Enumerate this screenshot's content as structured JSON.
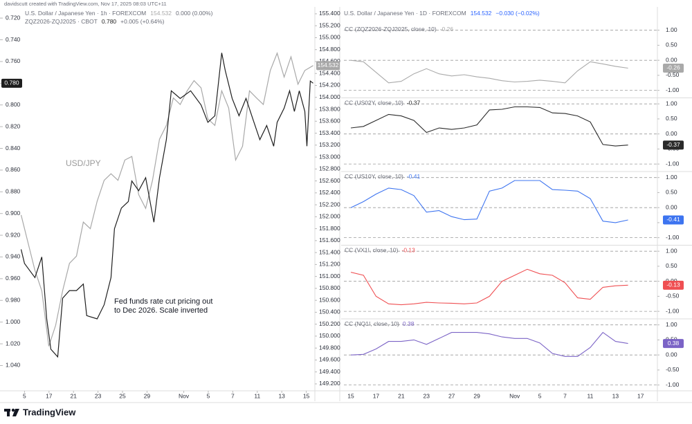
{
  "header": {
    "credit": "davidscutt created with TradingView.com, Nov 17, 2025 08:03 UTC+11"
  },
  "footer": {
    "brand": "TradingView"
  },
  "chart_data": [
    {
      "type": "line",
      "annotations": [
        "USD/JPY",
        "Fed funds rate cut pricing out",
        "to Dec 2026. Scale inverted"
      ],
      "xlim": [
        -2,
        23.7
      ],
      "xticks": [
        {
          "value": 0,
          "label": "5"
        },
        {
          "value": 2,
          "label": "17"
        },
        {
          "value": 4,
          "label": "21"
        },
        {
          "value": 6,
          "label": "23"
        },
        {
          "value": 8,
          "label": "25"
        },
        {
          "value": 10,
          "label": "29"
        },
        {
          "value": 13,
          "label": "Nov"
        },
        {
          "value": 15,
          "label": "5"
        },
        {
          "value": 17,
          "label": "7"
        },
        {
          "value": 19,
          "label": "11"
        },
        {
          "value": 21,
          "label": "13"
        },
        {
          "value": 23,
          "label": "15"
        }
      ],
      "ylim": [
        1.062,
        0.711
      ],
      "yticks": [
        {
          "value": 0.72,
          "label": "0.720"
        },
        {
          "value": 0.74,
          "label": "0.740"
        },
        {
          "value": 0.76,
          "label": "0.760"
        },
        {
          "value": 0.78,
          "label": "0.780"
        },
        {
          "value": 0.8,
          "label": "0.800"
        },
        {
          "value": 0.82,
          "label": "0.820"
        },
        {
          "value": 0.84,
          "label": "0.840"
        },
        {
          "value": 0.86,
          "label": "0.860"
        },
        {
          "value": 0.88,
          "label": "0.880"
        },
        {
          "value": 0.9,
          "label": "0.900"
        },
        {
          "value": 0.92,
          "label": "0.920"
        },
        {
          "value": 0.94,
          "label": "0.940"
        },
        {
          "value": 0.96,
          "label": "0.960"
        },
        {
          "value": 0.98,
          "label": "0.980"
        },
        {
          "value": 1.0,
          "label": "1.000"
        },
        {
          "value": 1.02,
          "label": "1.020"
        },
        {
          "value": 1.04,
          "label": "1.040"
        }
      ],
      "y2lim": [
        149.107,
        155.492
      ],
      "y2ticks": [
        {
          "value": 149.2,
          "label": "149.200"
        },
        {
          "value": 149.4,
          "label": "149.400"
        },
        {
          "value": 149.6,
          "label": "149.600"
        },
        {
          "value": 149.8,
          "label": "149.800"
        },
        {
          "value": 150.0,
          "label": "150.000"
        },
        {
          "value": 150.2,
          "label": "150.200"
        },
        {
          "value": 150.4,
          "label": "150.400"
        },
        {
          "value": 150.6,
          "label": "150.600"
        },
        {
          "value": 150.8,
          "label": "150.800"
        },
        {
          "value": 151.0,
          "label": "151.000"
        },
        {
          "value": 151.2,
          "label": "151.200"
        },
        {
          "value": 151.4,
          "label": "151.400"
        },
        {
          "value": 151.6,
          "label": "151.600"
        },
        {
          "value": 151.8,
          "label": "151.800"
        },
        {
          "value": 152.0,
          "label": "152.000"
        },
        {
          "value": 152.2,
          "label": "152.200"
        },
        {
          "value": 152.4,
          "label": "152.400"
        },
        {
          "value": 152.6,
          "label": "152.600"
        },
        {
          "value": 152.8,
          "label": "152.800"
        },
        {
          "value": 153.0,
          "label": "153.000"
        },
        {
          "value": 153.2,
          "label": "153.200"
        },
        {
          "value": 153.4,
          "label": "153.400"
        },
        {
          "value": 153.6,
          "label": "153.600"
        },
        {
          "value": 153.8,
          "label": "153.800"
        },
        {
          "value": 154.0,
          "label": "154.000"
        },
        {
          "value": 154.2,
          "label": "154.200"
        },
        {
          "value": 154.4,
          "label": "154.400"
        },
        {
          "value": 154.6,
          "label": "154.600"
        },
        {
          "value": 154.8,
          "label": "154.800"
        },
        {
          "value": 155.0,
          "label": "155.000"
        },
        {
          "value": 155.2,
          "label": "155.200"
        },
        {
          "value": 155.4,
          "label": "155.400"
        }
      ],
      "series": [
        {
          "name": "U.S. Dollar / Japanese Yen · 1h · FOREXCOM",
          "change": "0.000 (0.00%)",
          "axis": "y2",
          "color": "#a8a8a8",
          "x": [
            -0.28,
            0.28,
            0.85,
            1.41,
            1.98,
            2.54,
            3.11,
            3.67,
            4.24,
            4.8,
            5.37,
            5.93,
            6.5,
            7.06,
            7.63,
            8.19,
            8.76,
            9.32,
            9.89,
            10.45,
            11.02,
            11.58,
            12.15,
            12.71,
            13.28,
            13.84,
            14.41,
            14.97,
            15.54,
            16.1,
            16.67,
            17.23,
            17.8,
            18.36,
            18.93,
            19.49,
            20.06,
            20.62,
            21.19,
            21.75,
            22.32,
            22.88,
            23.56
          ],
          "values": [
            152.03,
            151.57,
            151.1,
            150.76,
            149.83,
            150.18,
            150.76,
            151.22,
            151.34,
            151.91,
            151.8,
            152.26,
            152.61,
            152.72,
            152.61,
            152.95,
            153.01,
            152.37,
            152.14,
            152.61,
            153.3,
            153.53,
            153.99,
            153.88,
            154.11,
            154.28,
            154.16,
            153.64,
            153.53,
            154.11,
            153.82,
            152.95,
            153.18,
            154.11,
            153.99,
            153.88,
            154.45,
            154.74,
            154.34,
            154.68,
            154.22,
            154.45,
            154.532
          ]
        },
        {
          "name": "ZQZ2026-ZQJ2025 · CBOT",
          "change": "+0.005 (+0.64%)",
          "color": "#1e1e1e",
          "x": [
            -0.28,
            0,
            0.85,
            1.41,
            1.81,
            2.15,
            2.71,
            3.11,
            3.67,
            4.24,
            4.8,
            5.08,
            5.93,
            6.5,
            7.06,
            7.34,
            7.91,
            8.47,
            8.76,
            9.32,
            9.89,
            10.56,
            11.02,
            11.58,
            11.98,
            12.71,
            13.56,
            14.41,
            14.97,
            15.54,
            16.1,
            16.38,
            16.95,
            17.51,
            18.08,
            18.64,
            19.21,
            19.77,
            20.34,
            20.62,
            21.19,
            21.64,
            22.03,
            22.43,
            22.88,
            23.05,
            23.33,
            23.56
          ],
          "values": [
            0.933,
            0.946,
            0.959,
            0.94,
            0.997,
            1.025,
            1.032,
            0.978,
            0.971,
            0.971,
            0.965,
            0.994,
            0.997,
            0.984,
            0.959,
            0.914,
            0.895,
            0.889,
            0.87,
            0.879,
            0.867,
            0.908,
            0.867,
            0.832,
            0.787,
            0.794,
            0.787,
            0.8,
            0.816,
            0.81,
            0.752,
            0.768,
            0.794,
            0.81,
            0.794,
            0.813,
            0.832,
            0.819,
            0.838,
            0.816,
            0.803,
            0.787,
            0.806,
            0.787,
            0.806,
            0.838,
            0.778,
            0.78
          ],
          "value_labels": [
            null,
            null,
            null,
            null,
            null,
            null,
            null,
            null,
            null,
            null,
            null,
            null,
            null,
            null,
            null,
            null,
            null,
            null,
            null,
            null,
            null,
            null,
            null,
            null,
            null,
            null,
            null,
            null,
            null,
            null,
            null,
            null,
            null,
            null,
            null,
            null,
            null,
            null,
            null,
            null,
            null,
            null,
            null,
            null,
            null,
            null,
            null,
            "0.780"
          ]
        }
      ]
    },
    {
      "type": "panels",
      "title": "U.S. Dollar / Japanese Yen · 1D · FOREXCOM",
      "price": 154.532,
      "change": "−0.030 (−0.02%)",
      "categories": [
        "15",
        null,
        "17",
        null,
        "21",
        null,
        "23",
        null,
        "27",
        null,
        "29",
        null,
        null,
        "Nov",
        null,
        "5",
        null,
        "7",
        null,
        "11",
        null,
        "13",
        null,
        "17"
      ],
      "ylim": [
        -1.25,
        1.2
      ],
      "yticks": [
        {
          "value": 1,
          "label": "1.00"
        },
        {
          "value": 0.5,
          "label": "0.50"
        },
        {
          "value": 0,
          "label": "0.00"
        },
        {
          "value": -0.5,
          "label": "-0.50"
        },
        {
          "value": -1,
          "label": "-1.00"
        }
      ],
      "hlines": [
        1,
        0,
        -1
      ],
      "series": [
        {
          "name": "CC (ZQZ2026-ZQJ2025, close, 10)",
          "color": "#a9a9a9",
          "values": [
            0.0,
            -0.05,
            -0.4,
            -0.75,
            -0.7,
            -0.45,
            -0.28,
            -0.45,
            -0.52,
            -0.48,
            -0.55,
            -0.6,
            -0.68,
            -0.72,
            -0.7,
            -0.66,
            -0.7,
            -0.75,
            -0.35,
            -0.05,
            -0.12,
            -0.2,
            -0.26,
            null
          ]
        },
        {
          "name": "CC (US02Y, close, 10)",
          "color": "#2a2a2a",
          "values": [
            0.2,
            0.25,
            0.45,
            0.65,
            0.6,
            0.45,
            0.05,
            0.2,
            0.15,
            0.2,
            0.3,
            0.8,
            0.82,
            0.9,
            0.9,
            0.88,
            0.7,
            0.68,
            0.6,
            0.4,
            -0.35,
            -0.4,
            -0.37,
            null
          ]
        },
        {
          "name": "CC (US10Y, close, 10)",
          "color": "#3d74f0",
          "values": [
            0.0,
            0.2,
            0.45,
            0.65,
            0.6,
            0.4,
            -0.15,
            -0.1,
            -0.3,
            -0.4,
            -0.38,
            0.55,
            0.65,
            0.9,
            0.9,
            0.9,
            0.6,
            0.58,
            0.55,
            0.3,
            -0.45,
            -0.5,
            -0.41,
            null
          ]
        },
        {
          "name": "CC (VX1!, close, 10)",
          "color": "#ef4f52",
          "values": [
            0.3,
            0.2,
            -0.5,
            -0.75,
            -0.78,
            -0.75,
            -0.7,
            -0.72,
            -0.73,
            -0.75,
            -0.72,
            -0.5,
            0.0,
            0.2,
            0.4,
            0.25,
            0.2,
            -0.05,
            -0.55,
            -0.6,
            -0.2,
            -0.15,
            -0.13,
            null
          ]
        },
        {
          "name": "CC (NQ1!, close, 10)",
          "color": "#7b63c6",
          "values": [
            0.0,
            0.02,
            0.2,
            0.45,
            0.45,
            0.5,
            0.35,
            0.55,
            0.75,
            0.75,
            0.75,
            0.7,
            0.6,
            0.55,
            0.55,
            0.4,
            0.05,
            -0.05,
            -0.05,
            0.25,
            0.75,
            0.45,
            0.38,
            null
          ]
        }
      ]
    }
  ]
}
